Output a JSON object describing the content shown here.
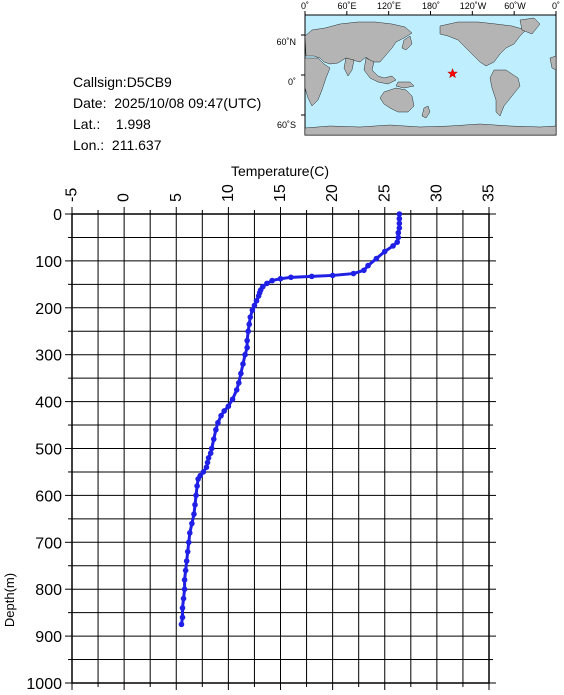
{
  "info": {
    "callsign": "Callsign:D5CB9",
    "date": "Date:  2025/10/08 09:47(UTC)",
    "lat": "Lat.:    1.998",
    "lon": "Lon.:  211.637"
  },
  "map": {
    "lon_labels": [
      "0˚",
      "60˚E",
      "120˚E",
      "180˚",
      "120˚W",
      "60˚W",
      "0˚"
    ],
    "lat_labels": [
      "60˚N",
      "0˚",
      "60˚S"
    ],
    "ocean_color": "#bfefff",
    "land_color": "#b4b4b4",
    "marker": {
      "lat": 1.998,
      "lon": 211.637,
      "symbol": "star",
      "color": "#ff0000"
    }
  },
  "chart_data": {
    "type": "line",
    "title": "",
    "xlabel": "Temperature(C)",
    "ylabel": "Depth(m)",
    "xlim": [
      -5,
      35
    ],
    "ylim": [
      0,
      1000
    ],
    "y_inverted": true,
    "x_axis_position": "top",
    "x_ticks": [
      "-5",
      "0",
      "5",
      "10",
      "15",
      "20",
      "25",
      "30",
      "35"
    ],
    "y_ticks": [
      "0",
      "100",
      "200",
      "300",
      "400",
      "500",
      "600",
      "700",
      "800",
      "900",
      "1000"
    ],
    "grid": true,
    "color": "#1f1fe6",
    "series": [
      {
        "temperature": [
          26.4,
          26.4,
          26.4,
          26.4,
          26.3,
          26.3,
          26.2,
          25.8,
          25.0,
          24.2,
          23.4,
          23.0,
          22.0,
          20.0,
          18.0,
          16.0,
          15.0,
          14.2,
          13.7,
          13.3,
          13.1,
          13.0,
          12.9,
          12.7,
          12.5,
          12.3,
          12.1,
          12.0,
          11.9,
          11.8,
          11.8,
          11.6,
          11.4,
          11.2,
          11.0,
          10.8,
          10.4,
          10.0,
          9.6,
          9.3,
          9.0,
          8.8,
          8.6,
          8.4,
          8.3,
          8.1,
          8.0,
          7.9,
          7.6,
          7.3,
          7.1,
          7.0,
          6.9,
          6.8,
          6.7,
          6.5,
          6.3,
          6.2,
          6.1,
          6.0,
          5.9,
          5.8,
          5.8,
          5.7,
          5.6,
          5.6,
          5.5
        ],
        "depth": [
          0,
          10,
          20,
          30,
          40,
          50,
          60,
          68,
          80,
          95,
          110,
          120,
          127,
          131,
          133,
          135,
          138,
          142,
          148,
          155,
          162,
          168,
          175,
          185,
          195,
          205,
          220,
          235,
          250,
          270,
          285,
          300,
          320,
          340,
          360,
          375,
          395,
          410,
          420,
          430,
          445,
          460,
          480,
          500,
          510,
          520,
          530,
          540,
          550,
          558,
          565,
          580,
          600,
          620,
          640,
          660,
          680,
          700,
          720,
          740,
          760,
          780,
          800,
          820,
          840,
          860,
          875
        ]
      }
    ]
  }
}
